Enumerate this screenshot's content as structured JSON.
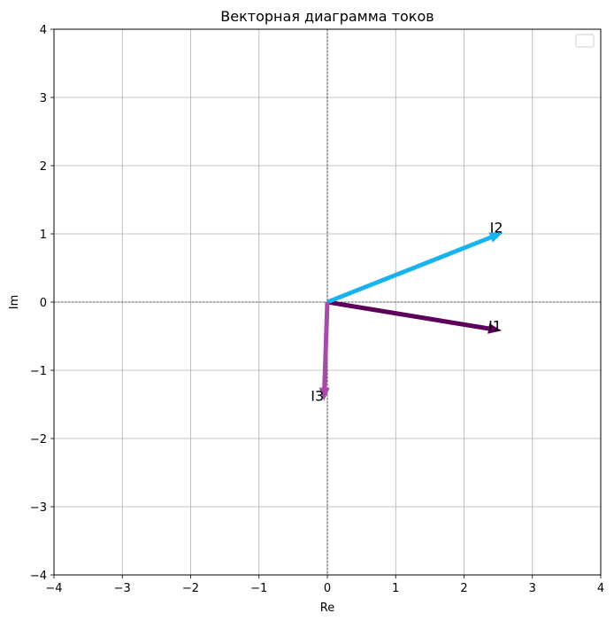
{
  "chart_data": {
    "type": "vector",
    "title": "Векторная диаграмма токов",
    "xlabel": "Re",
    "ylabel": "Im",
    "xlim": [
      -4,
      4
    ],
    "ylim": [
      -4,
      4
    ],
    "xticks": [
      -4,
      -3,
      -2,
      -1,
      0,
      1,
      2,
      3,
      4
    ],
    "yticks": [
      -4,
      -3,
      -2,
      -1,
      0,
      1,
      2,
      3,
      4
    ],
    "grid": true,
    "legend": {
      "placement": "top-right",
      "entries": []
    },
    "vectors": [
      {
        "name": "I1",
        "x": 2.55,
        "y": -0.42,
        "color": "#5c005c"
      },
      {
        "name": "I2",
        "x": 2.57,
        "y": 1.02,
        "color": "#19b2ed"
      },
      {
        "name": "I3",
        "x": -0.05,
        "y": -1.45,
        "color": "#aa4aa8"
      }
    ]
  }
}
